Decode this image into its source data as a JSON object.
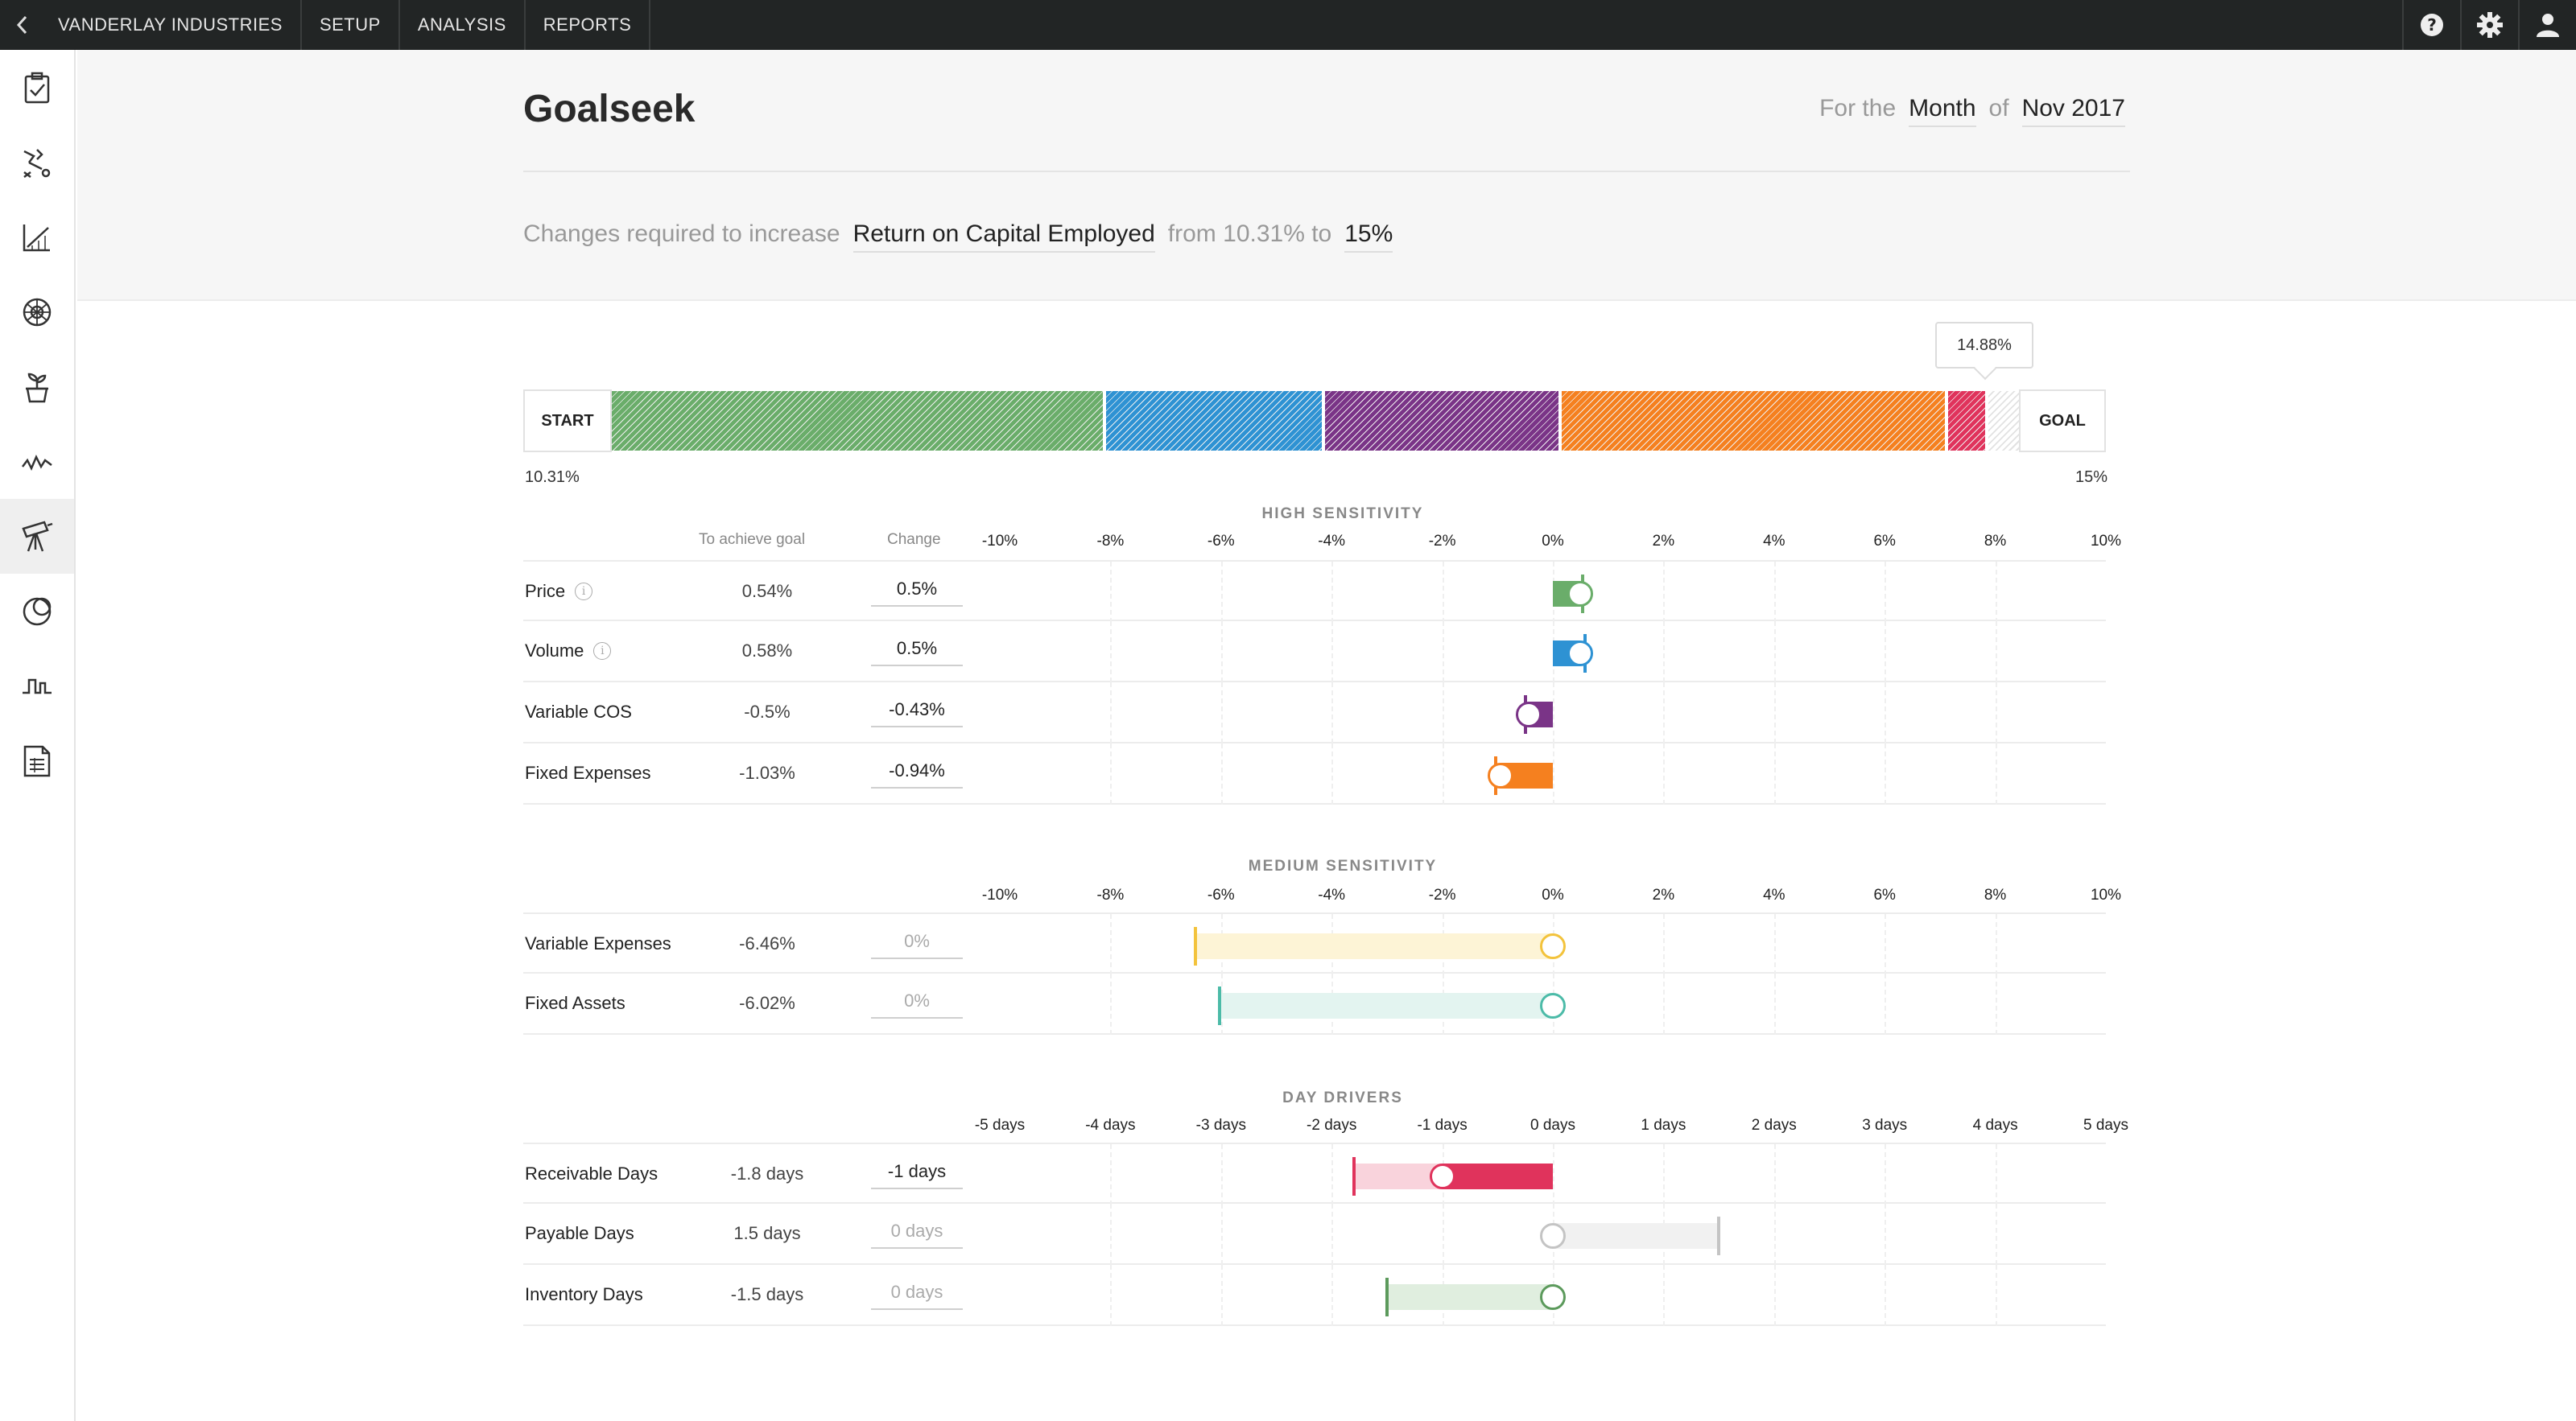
{
  "topbar": {
    "company": "VANDERLAY INDUSTRIES",
    "nav": [
      "SETUP",
      "ANALYSIS",
      "REPORTS"
    ],
    "icons": [
      "help-icon",
      "gear-icon",
      "user-icon"
    ]
  },
  "sidebar": {
    "icons": [
      "clipboard-check-icon",
      "strategy-icon",
      "chart-line-icon",
      "globe-grid-icon",
      "plant-pot-icon",
      "pulse-wave-icon",
      "telescope-icon",
      "overlap-circles-icon",
      "step-wave-icon",
      "report-icon"
    ],
    "active_index": 6
  },
  "header": {
    "title": "Goalseek",
    "period_prefix": "For the",
    "period_unit": "Month",
    "period_of": "of",
    "period_value": "Nov 2017",
    "goal_prefix": "Changes required to increase",
    "goal_metric": "Return on Capital Employed",
    "goal_from": "from 10.31% to",
    "goal_target": "15%"
  },
  "waterfall": {
    "start_label": "START",
    "goal_label": "GOAL",
    "start_value": "10.31%",
    "goal_value": "15%",
    "tooltip": "14.88%",
    "colors": [
      "#6aad6a",
      "#2e92d3",
      "#7a3487",
      "#f5801f",
      "#e0335c"
    ]
  },
  "columns": {
    "achieve": "To achieve goal",
    "change": "Change"
  },
  "high": {
    "title": "HIGH SENSITIVITY",
    "ticks": [
      "-10%",
      "-8%",
      "-6%",
      "-4%",
      "-2%",
      "0%",
      "2%",
      "4%",
      "6%",
      "8%",
      "10%"
    ],
    "rows": [
      {
        "label": "Price",
        "info": true,
        "achieve": "0.54%",
        "change": "0.5%",
        "goal": 0.54,
        "value": 0.5,
        "color": "#6aad6a"
      },
      {
        "label": "Volume",
        "info": true,
        "achieve": "0.58%",
        "change": "0.5%",
        "goal": 0.58,
        "value": 0.5,
        "color": "#2e92d3"
      },
      {
        "label": "Variable COS",
        "info": false,
        "achieve": "-0.5%",
        "change": "-0.43%",
        "goal": -0.5,
        "value": -0.43,
        "color": "#7a3487"
      },
      {
        "label": "Fixed Expenses",
        "info": false,
        "achieve": "-1.03%",
        "change": "-0.94%",
        "goal": -1.03,
        "value": -0.94,
        "color": "#f5801f"
      }
    ]
  },
  "medium": {
    "title": "MEDIUM SENSITIVITY",
    "ticks": [
      "-10%",
      "-8%",
      "-6%",
      "-4%",
      "-2%",
      "0%",
      "2%",
      "4%",
      "6%",
      "8%",
      "10%"
    ],
    "rows": [
      {
        "label": "Variable Expenses",
        "achieve": "-6.46%",
        "change": "0%",
        "goal": -6.46,
        "value": 0,
        "color": "#f3c33c",
        "pale": "#fdf4d6"
      },
      {
        "label": "Fixed Assets",
        "achieve": "-6.02%",
        "change": "0%",
        "goal": -6.02,
        "value": 0,
        "color": "#4cbba8",
        "pale": "#e3f4f0"
      }
    ]
  },
  "days": {
    "title": "DAY DRIVERS",
    "ticks": [
      "-5 days",
      "-4 days",
      "-3 days",
      "-2 days",
      "-1 days",
      "0 days",
      "1 days",
      "2 days",
      "3 days",
      "4 days",
      "5 days"
    ],
    "rows": [
      {
        "label": "Receivable Days",
        "achieve": "-1.8 days",
        "change": "-1 days",
        "goal": -1.8,
        "value": -1,
        "color": "#e0335c",
        "pale": "#f9d3dc"
      },
      {
        "label": "Payable Days",
        "achieve": "1.5 days",
        "change": "0 days",
        "goal": 1.5,
        "value": 0,
        "color": "#c4c4c4",
        "pale": "#f1f1f1"
      },
      {
        "label": "Inventory Days",
        "achieve": "-1.5 days",
        "change": "0 days",
        "goal": -1.5,
        "value": 0,
        "color": "#5c9a5c",
        "pale": "#e0eedf"
      }
    ]
  }
}
